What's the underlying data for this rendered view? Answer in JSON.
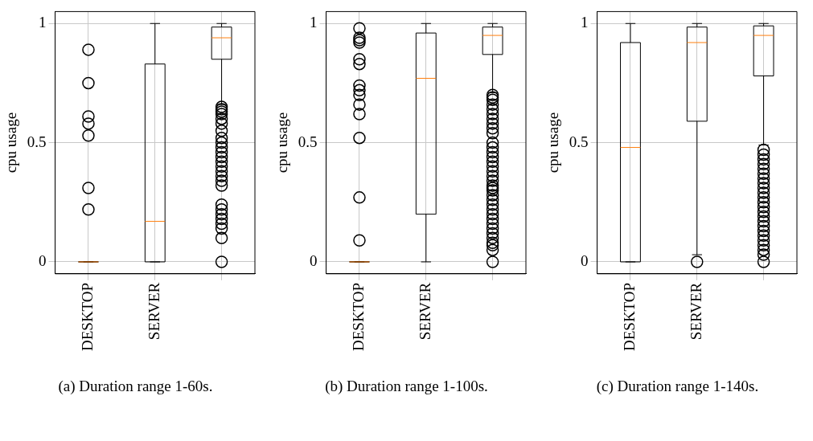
{
  "chart_data": [
    {
      "type": "box",
      "ylabel": "cpu usage",
      "categories": [
        "DESKTOP",
        "SERVER",
        null
      ],
      "ylim": [
        -0.05,
        1.05
      ],
      "yticks": [
        0,
        0.5,
        1
      ],
      "grid": true,
      "marker": "circle",
      "annotations": [
        "(a) Duration range 1-60s."
      ],
      "boxes": [
        {
          "low": 0,
          "q1": 0,
          "median": 0,
          "q3": 0,
          "high": 0,
          "outliers": [
            0.89,
            0.75,
            0.61,
            0.58,
            0.53,
            0.31,
            0.22
          ]
        },
        {
          "low": 0,
          "q1": 0,
          "median": 0.17,
          "q3": 0.83,
          "high": 1
        },
        {
          "low": 0.66,
          "q1": 0.85,
          "median": 0.94,
          "q3": 0.985,
          "high": 1,
          "outliers": [
            0.65,
            0.64,
            0.63,
            0.62,
            0.6,
            0.58,
            0.55,
            0.52,
            0.5,
            0.48,
            0.46,
            0.44,
            0.42,
            0.4,
            0.38,
            0.36,
            0.34,
            0.32,
            0.24,
            0.22,
            0.2,
            0.18,
            0.16,
            0.14,
            0.1,
            0
          ]
        }
      ]
    },
    {
      "type": "box",
      "ylabel": "cpu usage",
      "categories": [
        "DESKTOP",
        "SERVER",
        null
      ],
      "ylim": [
        -0.05,
        1.05
      ],
      "yticks": [
        0,
        0.5,
        1
      ],
      "grid": true,
      "marker": "circle",
      "annotations": [
        "(b) Duration range 1-100s."
      ],
      "boxes": [
        {
          "low": 0,
          "q1": 0,
          "median": 0,
          "q3": 0,
          "high": 0,
          "outliers": [
            0.98,
            0.94,
            0.93,
            0.92,
            0.85,
            0.83,
            0.74,
            0.72,
            0.7,
            0.66,
            0.62,
            0.52,
            0.27,
            0.09
          ]
        },
        {
          "low": 0,
          "q1": 0.2,
          "median": 0.77,
          "q3": 0.96,
          "high": 1
        },
        {
          "low": 0.71,
          "q1": 0.87,
          "median": 0.95,
          "q3": 0.985,
          "high": 1,
          "outliers": [
            0.7,
            0.69,
            0.68,
            0.66,
            0.64,
            0.62,
            0.6,
            0.58,
            0.56,
            0.54,
            0.5,
            0.48,
            0.46,
            0.44,
            0.42,
            0.4,
            0.38,
            0.36,
            0.34,
            0.32,
            0.31,
            0.3,
            0.28,
            0.26,
            0.24,
            0.22,
            0.2,
            0.18,
            0.16,
            0.14,
            0.12,
            0.1,
            0.08,
            0.07,
            0.05,
            0
          ]
        }
      ]
    },
    {
      "type": "box",
      "ylabel": "cpu usage",
      "categories": [
        "DESKTOP",
        "SERVER",
        null
      ],
      "ylim": [
        -0.05,
        1.05
      ],
      "yticks": [
        0,
        0.5,
        1
      ],
      "grid": true,
      "marker": "circle",
      "annotations": [
        "(c) Duration range 1-140s."
      ],
      "boxes": [
        {
          "low": 0,
          "q1": 0,
          "median": 0.48,
          "q3": 0.92,
          "high": 1
        },
        {
          "low": 0.03,
          "q1": 0.59,
          "median": 0.92,
          "q3": 0.985,
          "high": 1,
          "outliers": [
            0
          ]
        },
        {
          "low": 0.49,
          "q1": 0.78,
          "median": 0.95,
          "q3": 0.99,
          "high": 1,
          "outliers": [
            0.47,
            0.45,
            0.43,
            0.41,
            0.39,
            0.37,
            0.35,
            0.33,
            0.31,
            0.29,
            0.27,
            0.25,
            0.23,
            0.21,
            0.19,
            0.17,
            0.15,
            0.13,
            0.11,
            0.09,
            0.07,
            0.05,
            0.03,
            0
          ]
        }
      ]
    }
  ]
}
